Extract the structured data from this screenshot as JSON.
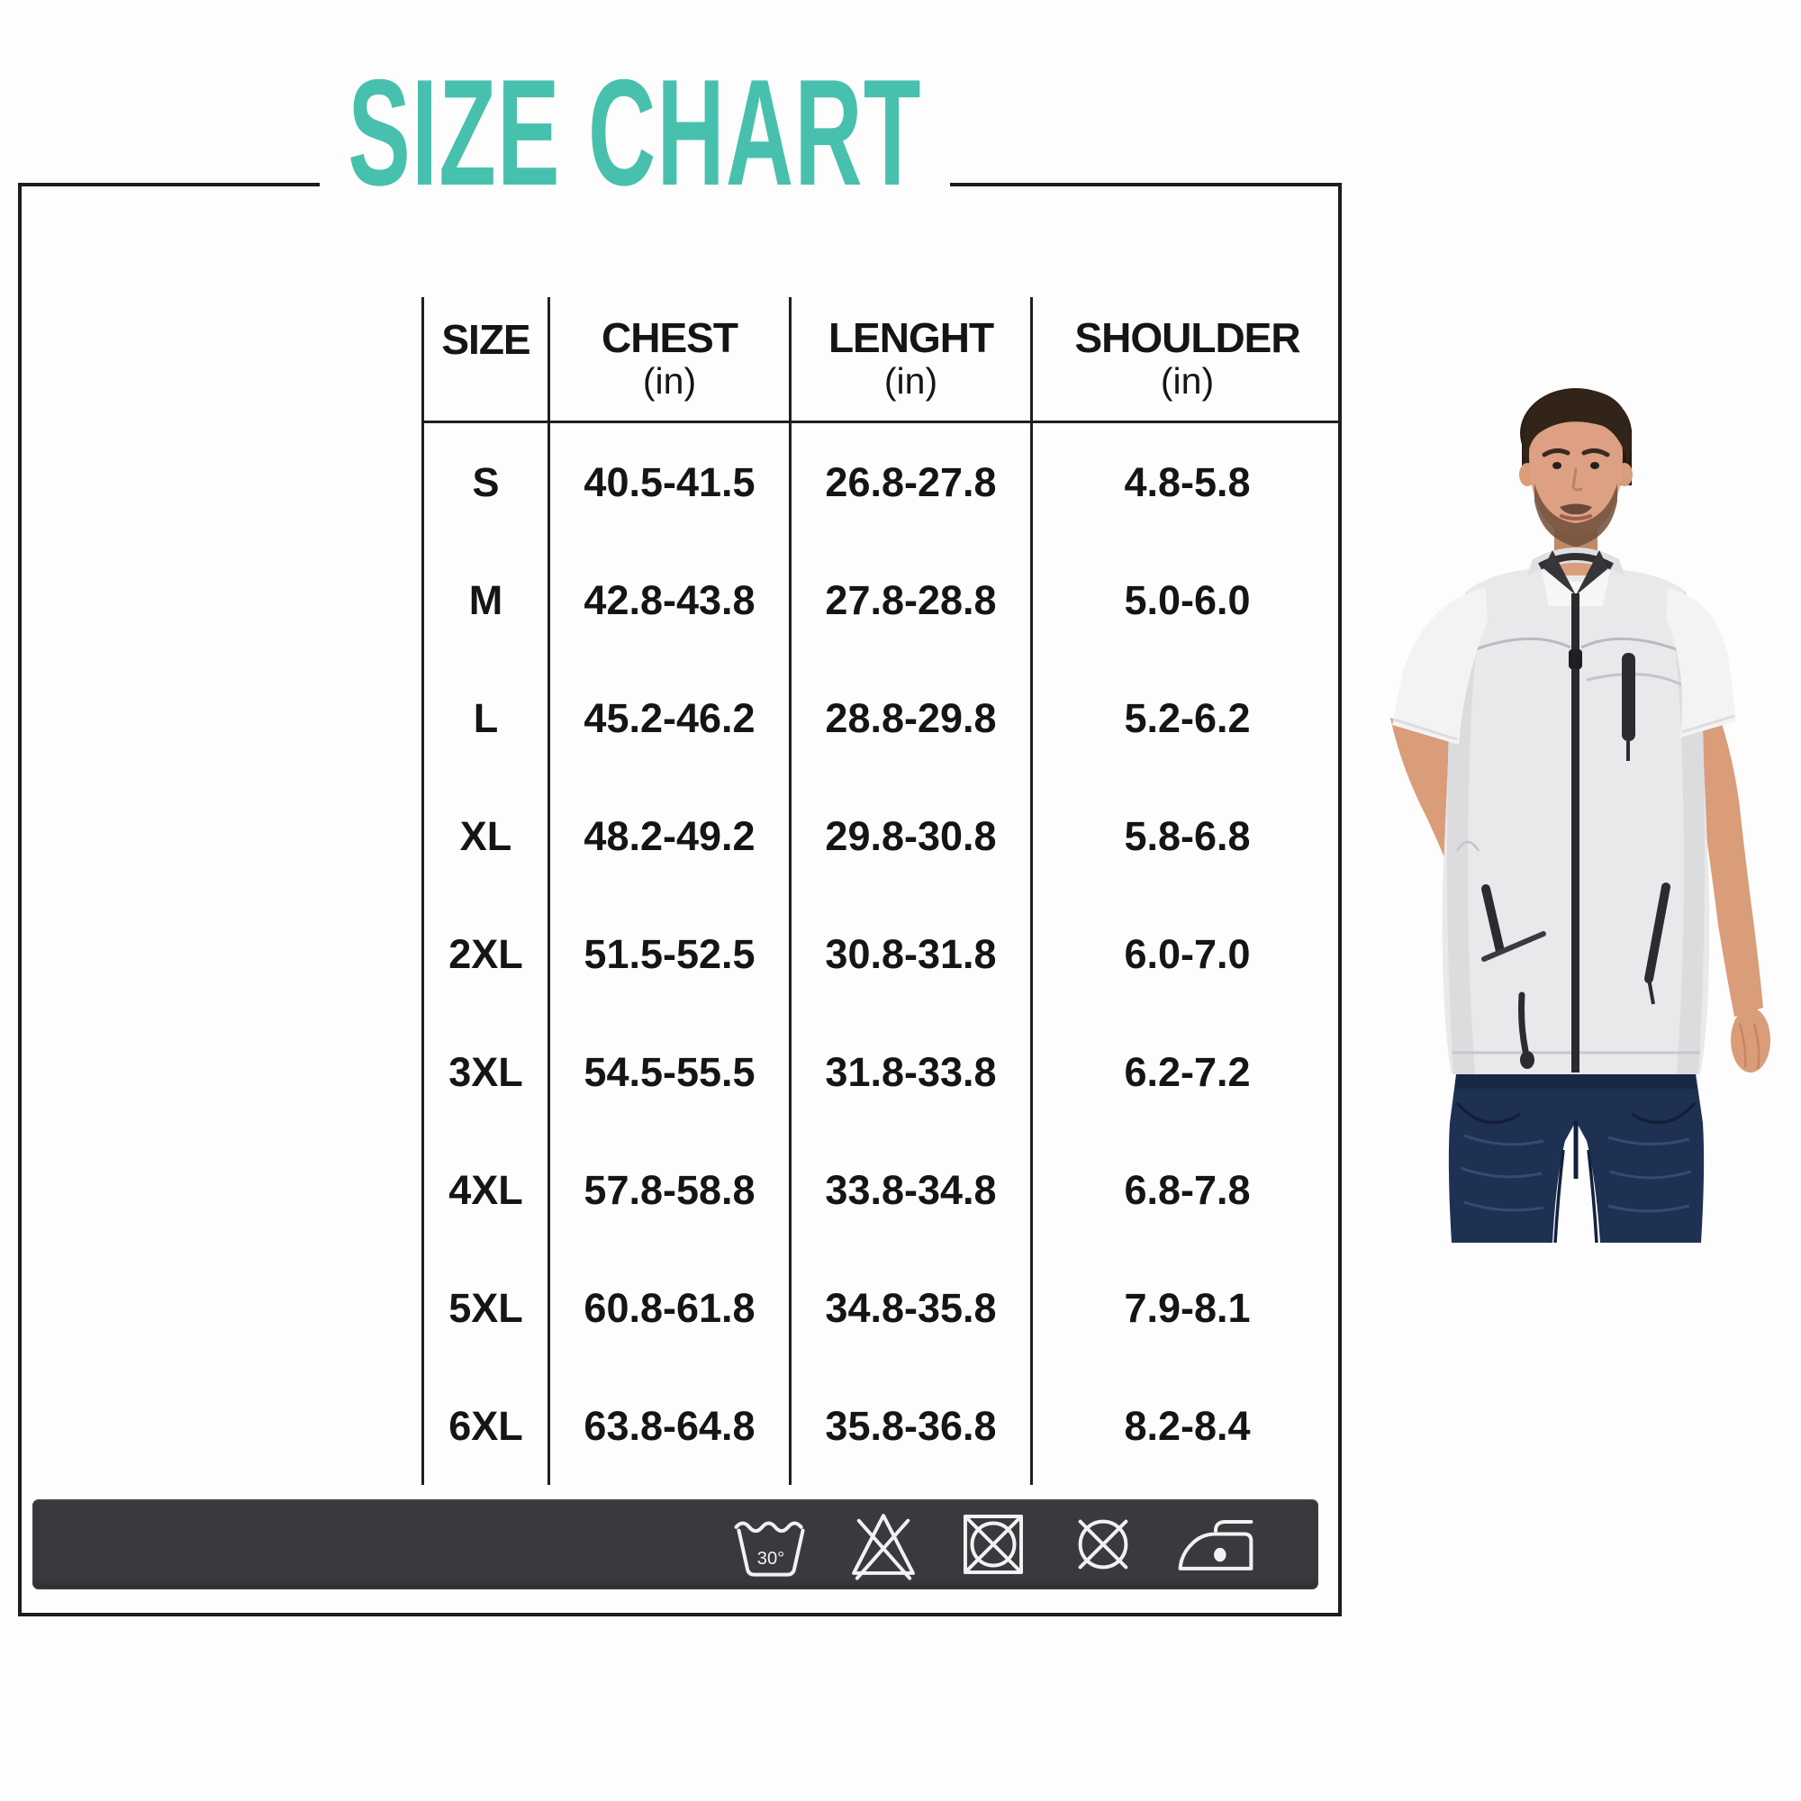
{
  "title": {
    "text": "SIZE CHART",
    "accent_color": "#48c0ae"
  },
  "size_table": {
    "headers": [
      {
        "label": "SIZE",
        "unit": ""
      },
      {
        "label": "CHEST",
        "unit": "(in)"
      },
      {
        "label": "LENGHT",
        "unit": "(in)"
      },
      {
        "label": "SHOULDER",
        "unit": "(in)"
      }
    ],
    "rows": [
      {
        "size": "S",
        "chest": "40.5-41.5",
        "length": "26.8-27.8",
        "shoulder": "4.8-5.8"
      },
      {
        "size": "M",
        "chest": "42.8-43.8",
        "length": "27.8-28.8",
        "shoulder": "5.0-6.0"
      },
      {
        "size": "L",
        "chest": "45.2-46.2",
        "length": "28.8-29.8",
        "shoulder": "5.2-6.2"
      },
      {
        "size": "XL",
        "chest": "48.2-49.2",
        "length": "29.8-30.8",
        "shoulder": "5.8-6.8"
      },
      {
        "size": "2XL",
        "chest": "51.5-52.5",
        "length": "30.8-31.8",
        "shoulder": "6.0-7.0"
      },
      {
        "size": "3XL",
        "chest": "54.5-55.5",
        "length": "31.8-33.8",
        "shoulder": "6.2-7.2"
      },
      {
        "size": "4XL",
        "chest": "57.8-58.8",
        "length": "33.8-34.8",
        "shoulder": "6.8-7.8"
      },
      {
        "size": "5XL",
        "chest": "60.8-61.8",
        "length": "34.8-35.8",
        "shoulder": "7.9-8.1"
      },
      {
        "size": "6XL",
        "chest": "63.8-64.8",
        "length": "35.8-36.8",
        "shoulder": "8.2-8.4"
      }
    ]
  },
  "care_bar": {
    "background": "#3a393d",
    "icons": [
      {
        "name": "machine-wash-30-icon",
        "temp_label": "30°"
      },
      {
        "name": "do-not-bleach-icon"
      },
      {
        "name": "do-not-tumble-dry-icon"
      },
      {
        "name": "do-not-dry-clean-icon"
      },
      {
        "name": "iron-low-heat-icon"
      }
    ]
  }
}
